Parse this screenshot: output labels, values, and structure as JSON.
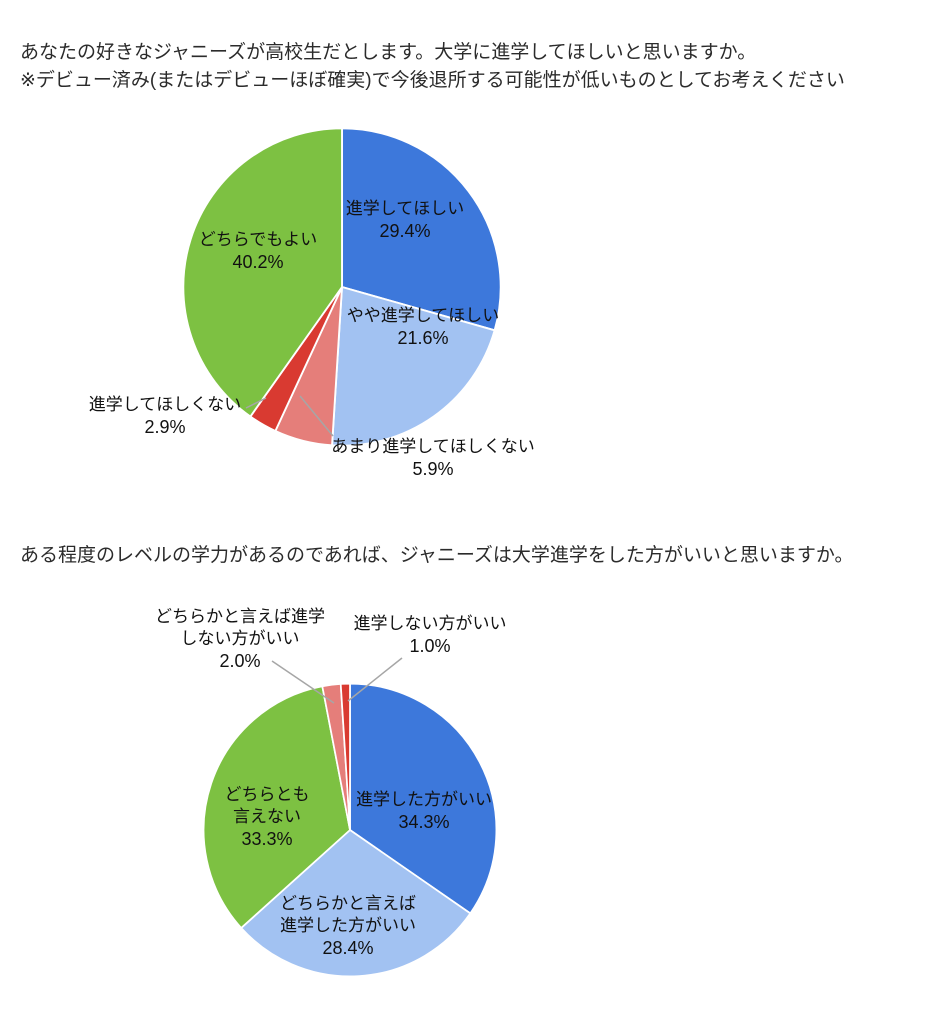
{
  "page": {
    "background": "#ffffff"
  },
  "chart_data": [
    {
      "type": "pie",
      "title": "あなたの好きなジャニーズが高校生だとします。大学に進学してほしいと思いますか。",
      "subtitle": "※デビュー済み(またはデビューほぼ確実)で今後退所する可能性が低いものとしてお考えください",
      "legend": "none",
      "start_angle": "12-oclock",
      "direction": "clockwise",
      "slices": [
        {
          "label": "進学してほしい",
          "value": 29.4,
          "pct_label": "29.4%",
          "color": "#3d78db",
          "label_position": "inside"
        },
        {
          "label": "やや進学してほしい",
          "value": 21.6,
          "pct_label": "21.6%",
          "color": "#a2c2f2",
          "label_position": "inside"
        },
        {
          "label": "あまり進学してほしくない",
          "value": 5.9,
          "pct_label": "5.9%",
          "color": "#e57e7a",
          "label_position": "outside"
        },
        {
          "label": "進学してほしくない",
          "value": 2.9,
          "pct_label": "2.9%",
          "color": "#d93a31",
          "label_position": "outside"
        },
        {
          "label": "どちらでもよい",
          "value": 40.2,
          "pct_label": "40.2%",
          "color": "#7dc142",
          "label_position": "inside"
        }
      ]
    },
    {
      "type": "pie",
      "title": "ある程度のレベルの学力があるのであれば、ジャニーズは大学進学をした方がいいと思いますか。",
      "legend": "none",
      "start_angle": "12-oclock",
      "direction": "clockwise",
      "slices": [
        {
          "label": "進学した方がいい",
          "value": 34.3,
          "pct_label": "34.3%",
          "color": "#3d78db",
          "label_position": "inside"
        },
        {
          "label": "どちらかと言えば進学した方がいい",
          "value": 28.4,
          "pct_label": "28.4%",
          "color": "#a2c2f2",
          "label_position": "inside"
        },
        {
          "label": "どちらとも言えない",
          "value": 33.3,
          "pct_label": "33.3%",
          "color": "#7dc142",
          "label_position": "inside"
        },
        {
          "label": "どちらかと言えば進学しない方がいい",
          "value": 2.0,
          "pct_label": "2.0%",
          "color": "#e57e7a",
          "label_position": "outside"
        },
        {
          "label": "進学しない方がいい",
          "value": 1.0,
          "pct_label": "1.0%",
          "color": "#d93a31",
          "label_position": "outside"
        }
      ]
    }
  ]
}
